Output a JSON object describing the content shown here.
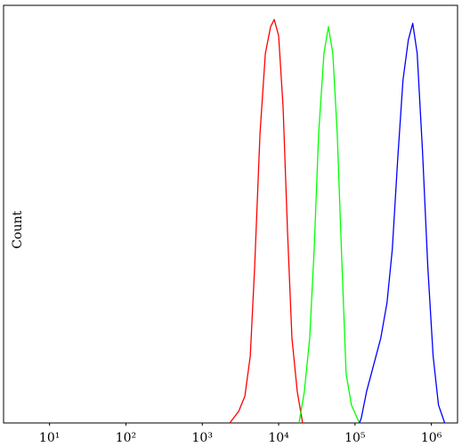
{
  "chart_data": {
    "type": "line",
    "y_label": "Count",
    "xscale": "log",
    "xlim": [
      2.5,
      2200000
    ],
    "ylim": [
      0,
      100
    ],
    "xticks": [
      {
        "value": 10,
        "label": "10¹"
      },
      {
        "value": 100,
        "label": "10²"
      },
      {
        "value": 1000,
        "label": "10³"
      },
      {
        "value": 10000,
        "label": "10⁴"
      },
      {
        "value": 100000,
        "label": "10⁵"
      },
      {
        "value": 1000000,
        "label": "10⁶"
      }
    ],
    "series": [
      {
        "color": "#ff0000",
        "x": [
          2290,
          3000,
          3610,
          4250,
          4850,
          5700,
          6700,
          7850,
          8750,
          10000,
          11430,
          13070,
          14930,
          17530,
          20600
        ],
        "values": [
          0,
          2.8,
          6.4,
          16,
          37.3,
          69.3,
          88.5,
          94.9,
          96.6,
          92.7,
          75.7,
          45.8,
          20.3,
          7.5,
          0
        ]
      },
      {
        "color": "#00ff00",
        "x": [
          18500,
          21700,
          25500,
          29200,
          33400,
          39200,
          44800,
          51200,
          58500,
          67000,
          76500,
          89800,
          114000
        ],
        "values": [
          0,
          7.5,
          20.3,
          41.6,
          69.3,
          88.5,
          94.9,
          88.5,
          69.3,
          39.4,
          11.7,
          4.3,
          0
        ]
      },
      {
        "color": "#0000ff",
        "x": [
          114000,
          120500,
          141600,
          175400,
          217300,
          262400,
          307800,
          361400,
          424600,
          498800,
          570200,
          651600,
          765500,
          897900,
          1054000,
          1238000,
          1495000
        ],
        "values": [
          0,
          1.1,
          7.5,
          13.9,
          20.3,
          28.8,
          41.6,
          62.9,
          82.1,
          91.7,
          95.7,
          88.5,
          65,
          37.3,
          16,
          4.3,
          0
        ]
      }
    ]
  }
}
